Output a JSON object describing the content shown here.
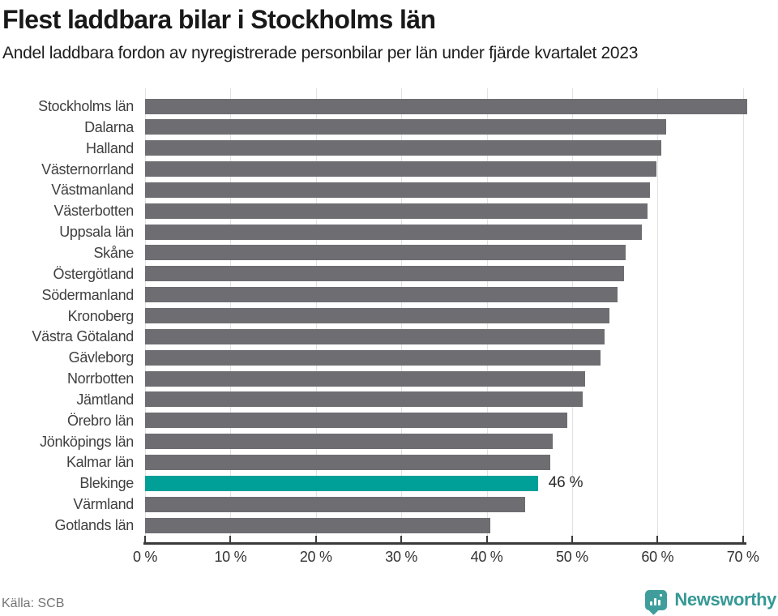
{
  "header": {
    "title": "Flest laddbara bilar i Stockholms län",
    "subtitle": "Andel laddbara fordon av nyregistrerade personbilar per län under fjärde kvartalet 2023"
  },
  "chart_data": {
    "type": "bar",
    "orientation": "horizontal",
    "unit": "%",
    "title": "Flest laddbara bilar i Stockholms län",
    "subtitle": "Andel laddbara fordon av nyregistrerade personbilar per län under fjärde kvartalet 2023",
    "categories": [
      "Stockholms län",
      "Dalarna",
      "Halland",
      "Västernorrland",
      "Västmanland",
      "Västerbotten",
      "Uppsala län",
      "Skåne",
      "Östergötland",
      "Södermanland",
      "Kronoberg",
      "Västra Götaland",
      "Gävleborg",
      "Norrbotten",
      "Jämtland",
      "Örebro län",
      "Jönköpings län",
      "Kalmar län",
      "Blekinge",
      "Värmland",
      "Gotlands län"
    ],
    "values": [
      70.5,
      61.0,
      60.4,
      59.9,
      59.1,
      58.8,
      58.2,
      56.3,
      56.1,
      55.3,
      54.4,
      53.8,
      53.3,
      51.5,
      51.2,
      49.4,
      47.7,
      47.4,
      46.0,
      44.5,
      40.4
    ],
    "bar_color": "#6d6d72",
    "highlight_category": "Blekinge",
    "highlight_color": "#00a099",
    "annotation": {
      "category": "Blekinge",
      "text": "46 %"
    },
    "xlim": [
      0,
      70
    ],
    "ticks": [
      0,
      10,
      20,
      30,
      40,
      50,
      60,
      70
    ],
    "tick_labels": [
      "0 %",
      "10 %",
      "20 %",
      "30 %",
      "40 %",
      "50 %",
      "60 %",
      "70 %"
    ],
    "grid": true,
    "legend": false,
    "grid_color": "#e2e2e2",
    "axis_color": "#3a3a3a"
  },
  "footer": {
    "source": "Källa: SCB",
    "brand": "Newsworthy",
    "brand_color": "#359996"
  }
}
